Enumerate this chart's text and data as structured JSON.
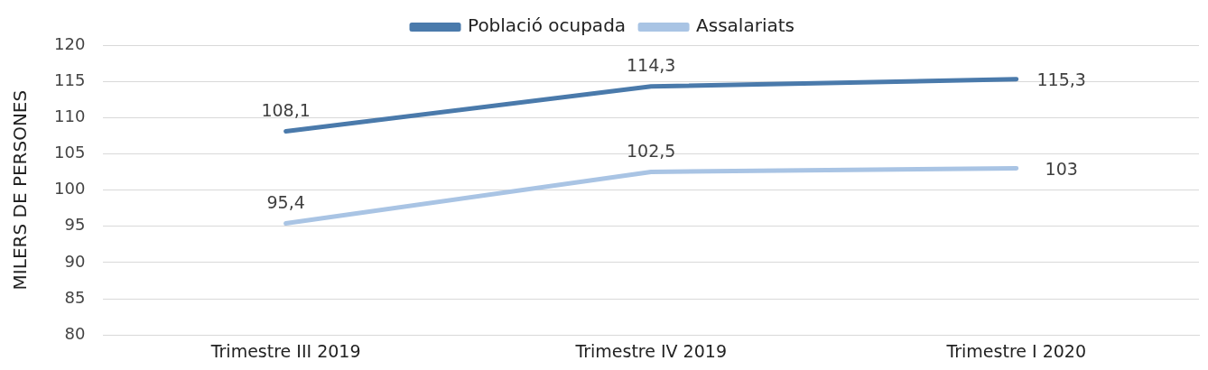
{
  "chart_data": {
    "type": "line",
    "ylabel": "MILERS DE PERSONES",
    "categories": [
      "Trimestre III 2019",
      "Trimestre IV 2019",
      "Trimestre I 2020"
    ],
    "series": [
      {
        "name": "Població ocupada",
        "color": "#4a7aab",
        "values": [
          108.1,
          114.3,
          115.3
        ],
        "value_labels": [
          "108,1",
          "114,3",
          "115,3"
        ]
      },
      {
        "name": "Assalariats",
        "color": "#a9c4e4",
        "values": [
          95.4,
          102.5,
          103
        ],
        "value_labels": [
          "95,4",
          "102,5",
          "103"
        ]
      }
    ],
    "ylim": [
      80,
      120
    ],
    "yticks": [
      80,
      85,
      90,
      95,
      100,
      105,
      110,
      115,
      120
    ],
    "grid": "y",
    "legend": "top",
    "marker": "none",
    "line_style": "solid"
  }
}
